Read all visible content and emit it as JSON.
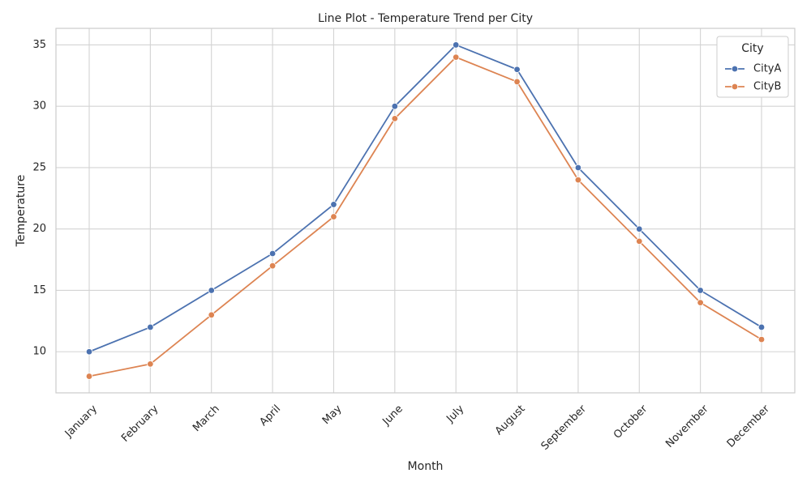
{
  "chart_data": {
    "type": "line",
    "title": "Line Plot - Temperature Trend per City",
    "xlabel": "Month",
    "ylabel": "Temperature",
    "categories": [
      "January",
      "February",
      "March",
      "April",
      "May",
      "June",
      "July",
      "August",
      "September",
      "October",
      "November",
      "December"
    ],
    "series": [
      {
        "name": "CityA",
        "color": "#4c72b0",
        "values": [
          10,
          12,
          15,
          18,
          22,
          30,
          35,
          33,
          25,
          20,
          15,
          12
        ]
      },
      {
        "name": "CityB",
        "color": "#dd8452",
        "values": [
          8,
          9,
          13,
          17,
          21,
          29,
          34,
          32,
          24,
          19,
          14,
          11
        ]
      }
    ],
    "yticks": [
      10,
      15,
      20,
      25,
      30,
      35
    ],
    "ylim": [
      6.65,
      36.35
    ],
    "grid": true,
    "legend": {
      "title": "City",
      "placement": "top-right"
    },
    "marker": "circle"
  }
}
